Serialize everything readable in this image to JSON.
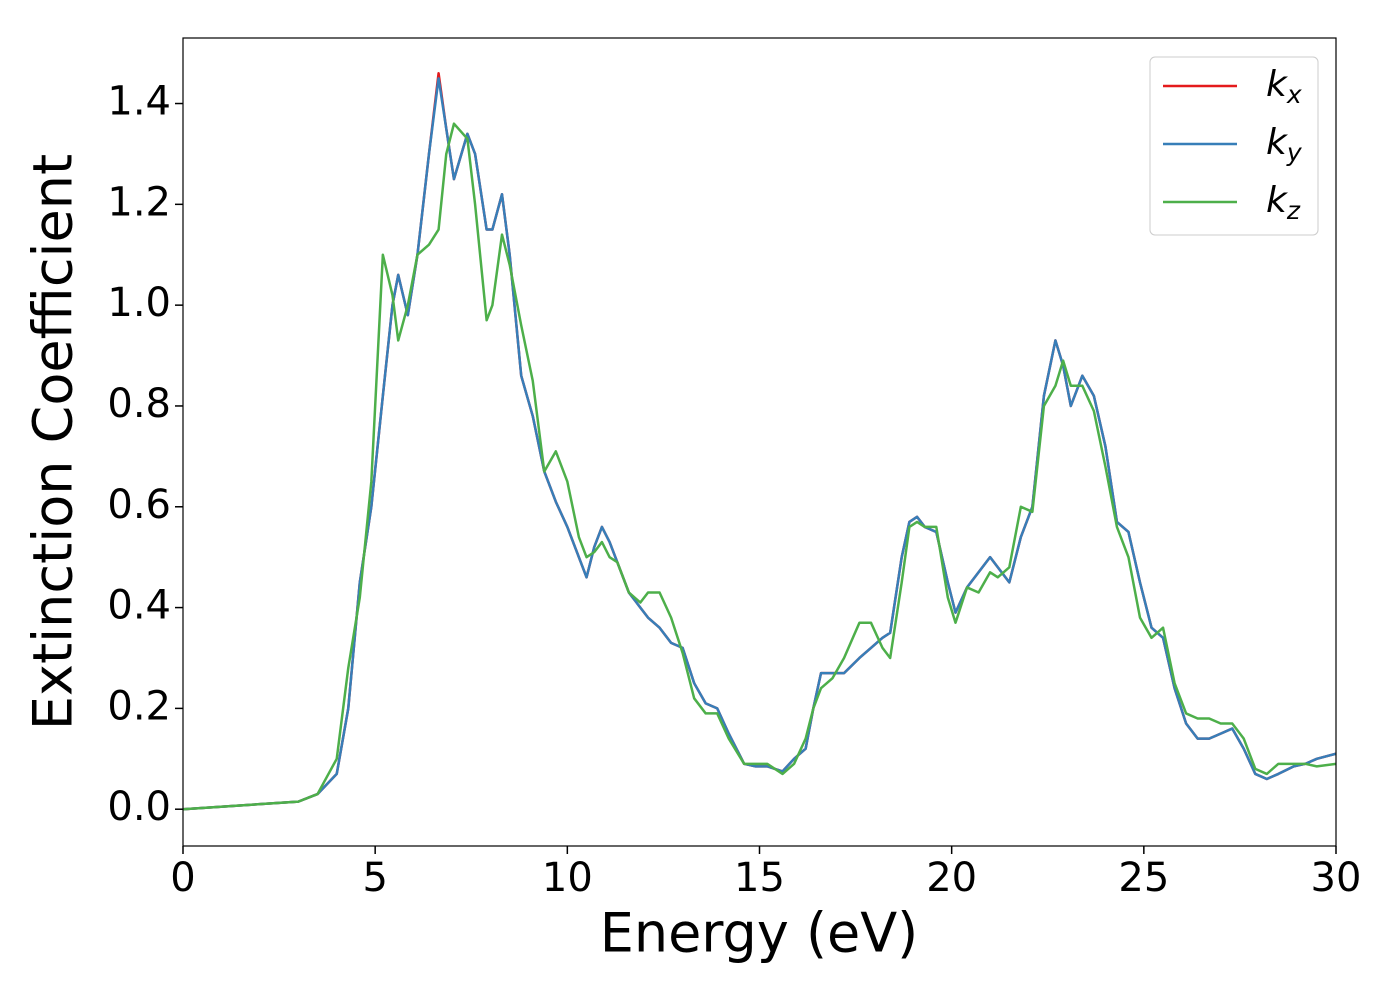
{
  "chart_data": {
    "type": "line",
    "x_label": "Energy (eV)",
    "y_label": "Extinction Coefficient",
    "x": [
      0,
      3,
      3.5,
      4,
      4.3,
      4.6,
      4.9,
      5.2,
      5.45,
      5.6,
      5.85,
      6.1,
      6.4,
      6.65,
      6.85,
      7.05,
      7.4,
      7.6,
      7.9,
      8.05,
      8.3,
      8.5,
      8.8,
      9.1,
      9.4,
      9.7,
      10,
      10.3,
      10.5,
      10.7,
      10.9,
      11.1,
      11.3,
      11.6,
      11.9,
      12.1,
      12.4,
      12.7,
      13,
      13.3,
      13.6,
      13.9,
      14.2,
      14.6,
      14.9,
      15.2,
      15.6,
      15.9,
      16.2,
      16.4,
      16.6,
      16.9,
      17.2,
      17.6,
      17.9,
      18.2,
      18.4,
      18.7,
      18.9,
      19.1,
      19.3,
      19.6,
      19.9,
      20.1,
      20.4,
      20.7,
      21,
      21.2,
      21.5,
      21.8,
      22.1,
      22.4,
      22.7,
      22.9,
      23.1,
      23.4,
      23.7,
      24,
      24.3,
      24.6,
      24.9,
      25.2,
      25.5,
      25.8,
      26.1,
      26.4,
      26.7,
      27,
      27.3,
      27.6,
      27.9,
      28.2,
      28.5,
      28.9,
      29.2,
      29.5,
      30
    ],
    "series": [
      {
        "name": "kx",
        "color": "#e41a1c",
        "values": [
          0,
          0.015,
          0.03,
          0.07,
          0.2,
          0.45,
          0.6,
          0.82,
          1.0,
          1.06,
          0.98,
          1.1,
          1.3,
          1.46,
          1.35,
          1.25,
          1.34,
          1.3,
          1.15,
          1.15,
          1.22,
          1.1,
          0.86,
          0.78,
          0.67,
          0.61,
          0.56,
          0.5,
          0.46,
          0.52,
          0.56,
          0.53,
          0.49,
          0.43,
          0.4,
          0.38,
          0.36,
          0.33,
          0.32,
          0.25,
          0.21,
          0.2,
          0.15,
          0.09,
          0.085,
          0.085,
          0.075,
          0.1,
          0.12,
          0.2,
          0.27,
          0.27,
          0.27,
          0.3,
          0.32,
          0.34,
          0.35,
          0.5,
          0.57,
          0.58,
          0.56,
          0.55,
          0.45,
          0.39,
          0.44,
          0.47,
          0.5,
          0.48,
          0.45,
          0.54,
          0.6,
          0.82,
          0.93,
          0.88,
          0.8,
          0.86,
          0.82,
          0.72,
          0.57,
          0.55,
          0.45,
          0.36,
          0.34,
          0.24,
          0.17,
          0.14,
          0.14,
          0.15,
          0.16,
          0.12,
          0.07,
          0.06,
          0.07,
          0.085,
          0.09,
          0.1,
          0.11
        ]
      },
      {
        "name": "ky",
        "color": "#377eb8",
        "values": [
          0,
          0.015,
          0.03,
          0.07,
          0.2,
          0.45,
          0.6,
          0.82,
          1.0,
          1.06,
          0.98,
          1.1,
          1.3,
          1.45,
          1.35,
          1.25,
          1.34,
          1.3,
          1.15,
          1.15,
          1.22,
          1.1,
          0.86,
          0.78,
          0.67,
          0.61,
          0.56,
          0.5,
          0.46,
          0.52,
          0.56,
          0.53,
          0.49,
          0.43,
          0.4,
          0.38,
          0.36,
          0.33,
          0.32,
          0.25,
          0.21,
          0.2,
          0.15,
          0.09,
          0.085,
          0.085,
          0.075,
          0.1,
          0.12,
          0.2,
          0.27,
          0.27,
          0.27,
          0.3,
          0.32,
          0.34,
          0.35,
          0.5,
          0.57,
          0.58,
          0.56,
          0.55,
          0.45,
          0.39,
          0.44,
          0.47,
          0.5,
          0.48,
          0.45,
          0.54,
          0.6,
          0.82,
          0.93,
          0.88,
          0.8,
          0.86,
          0.82,
          0.72,
          0.57,
          0.55,
          0.45,
          0.36,
          0.34,
          0.24,
          0.17,
          0.14,
          0.14,
          0.15,
          0.16,
          0.12,
          0.07,
          0.06,
          0.07,
          0.085,
          0.09,
          0.1,
          0.11
        ]
      },
      {
        "name": "kz",
        "color": "#4daf4a",
        "values": [
          0,
          0.015,
          0.03,
          0.1,
          0.28,
          0.42,
          0.65,
          1.1,
          1.02,
          0.93,
          1.0,
          1.1,
          1.12,
          1.15,
          1.3,
          1.36,
          1.33,
          1.2,
          0.97,
          1.0,
          1.14,
          1.08,
          0.96,
          0.85,
          0.67,
          0.71,
          0.65,
          0.54,
          0.5,
          0.51,
          0.53,
          0.5,
          0.49,
          0.43,
          0.41,
          0.43,
          0.43,
          0.38,
          0.31,
          0.22,
          0.19,
          0.19,
          0.14,
          0.09,
          0.09,
          0.09,
          0.07,
          0.09,
          0.14,
          0.2,
          0.24,
          0.26,
          0.3,
          0.37,
          0.37,
          0.32,
          0.3,
          0.45,
          0.56,
          0.57,
          0.56,
          0.56,
          0.42,
          0.37,
          0.44,
          0.43,
          0.47,
          0.46,
          0.48,
          0.6,
          0.59,
          0.8,
          0.84,
          0.89,
          0.84,
          0.84,
          0.79,
          0.68,
          0.56,
          0.5,
          0.38,
          0.34,
          0.36,
          0.25,
          0.19,
          0.18,
          0.18,
          0.17,
          0.17,
          0.14,
          0.08,
          0.07,
          0.09,
          0.09,
          0.09,
          0.085,
          0.09
        ]
      }
    ],
    "xlim": [
      0,
      30
    ],
    "xticks": [
      0,
      5,
      10,
      15,
      20,
      25,
      30
    ],
    "ylim": [
      -0.073,
      1.53
    ],
    "yticks": [
      {
        "value": 0,
        "label": "0.0"
      },
      0.2,
      0.4,
      0.6,
      0.8,
      {
        "value": 1,
        "label": "1.0"
      },
      1.2,
      1.4
    ],
    "grid": false,
    "legend": "upper right"
  }
}
